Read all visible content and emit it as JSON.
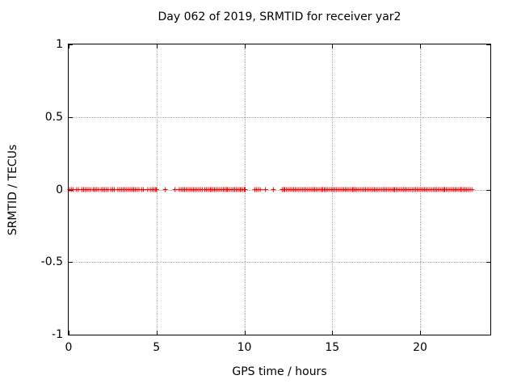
{
  "chart_data": {
    "type": "scatter",
    "title": "Day 062 of 2019, SRMTID for receiver yar2",
    "xlabel": "GPS time / hours",
    "ylabel": "SRMTID / TECUs",
    "xlim": [
      0,
      24
    ],
    "ylim": [
      -1,
      1
    ],
    "xtick_values": [
      0,
      5,
      10,
      15,
      20
    ],
    "xtick_labels": [
      "0",
      "5",
      "10",
      "15",
      "20"
    ],
    "ytick_values": [
      1,
      0.5,
      0,
      -0.5,
      -1
    ],
    "ytick_labels": [
      "1",
      "0.5",
      "0",
      "-0.5",
      "-1"
    ],
    "grid": true,
    "legend": false,
    "marker": "plus",
    "marker_color": "#ff0000",
    "series": [
      {
        "name": "SRMTID",
        "y_value": 0,
        "x_segments": [
          [
            0.05,
            0.3
          ],
          [
            0.45,
            0.6
          ],
          [
            0.75,
            1.1
          ],
          [
            1.15,
            1.3
          ],
          [
            1.4,
            1.75
          ],
          [
            1.85,
            2.3
          ],
          [
            2.4,
            2.65
          ],
          [
            2.8,
            3.75
          ],
          [
            3.8,
            4.05
          ],
          [
            4.15,
            4.3
          ],
          [
            4.65,
            5.0
          ],
          [
            6.3,
            6.6
          ],
          [
            6.7,
            7.2
          ],
          [
            7.3,
            7.6
          ],
          [
            7.75,
            8.05
          ],
          [
            8.1,
            9.0
          ],
          [
            9.05,
            9.8
          ],
          [
            9.9,
            10.05
          ],
          [
            10.6,
            10.9
          ],
          [
            12.15,
            12.25
          ],
          [
            12.3,
            14.4
          ],
          [
            14.45,
            16.2
          ],
          [
            16.3,
            18.5
          ],
          [
            18.55,
            19.95
          ],
          [
            20.05,
            21.35
          ],
          [
            21.4,
            22.3
          ],
          [
            22.35,
            23.0
          ]
        ],
        "x_singles": [
          4.5,
          5.5,
          6.05,
          11.2,
          11.65
        ]
      }
    ]
  }
}
